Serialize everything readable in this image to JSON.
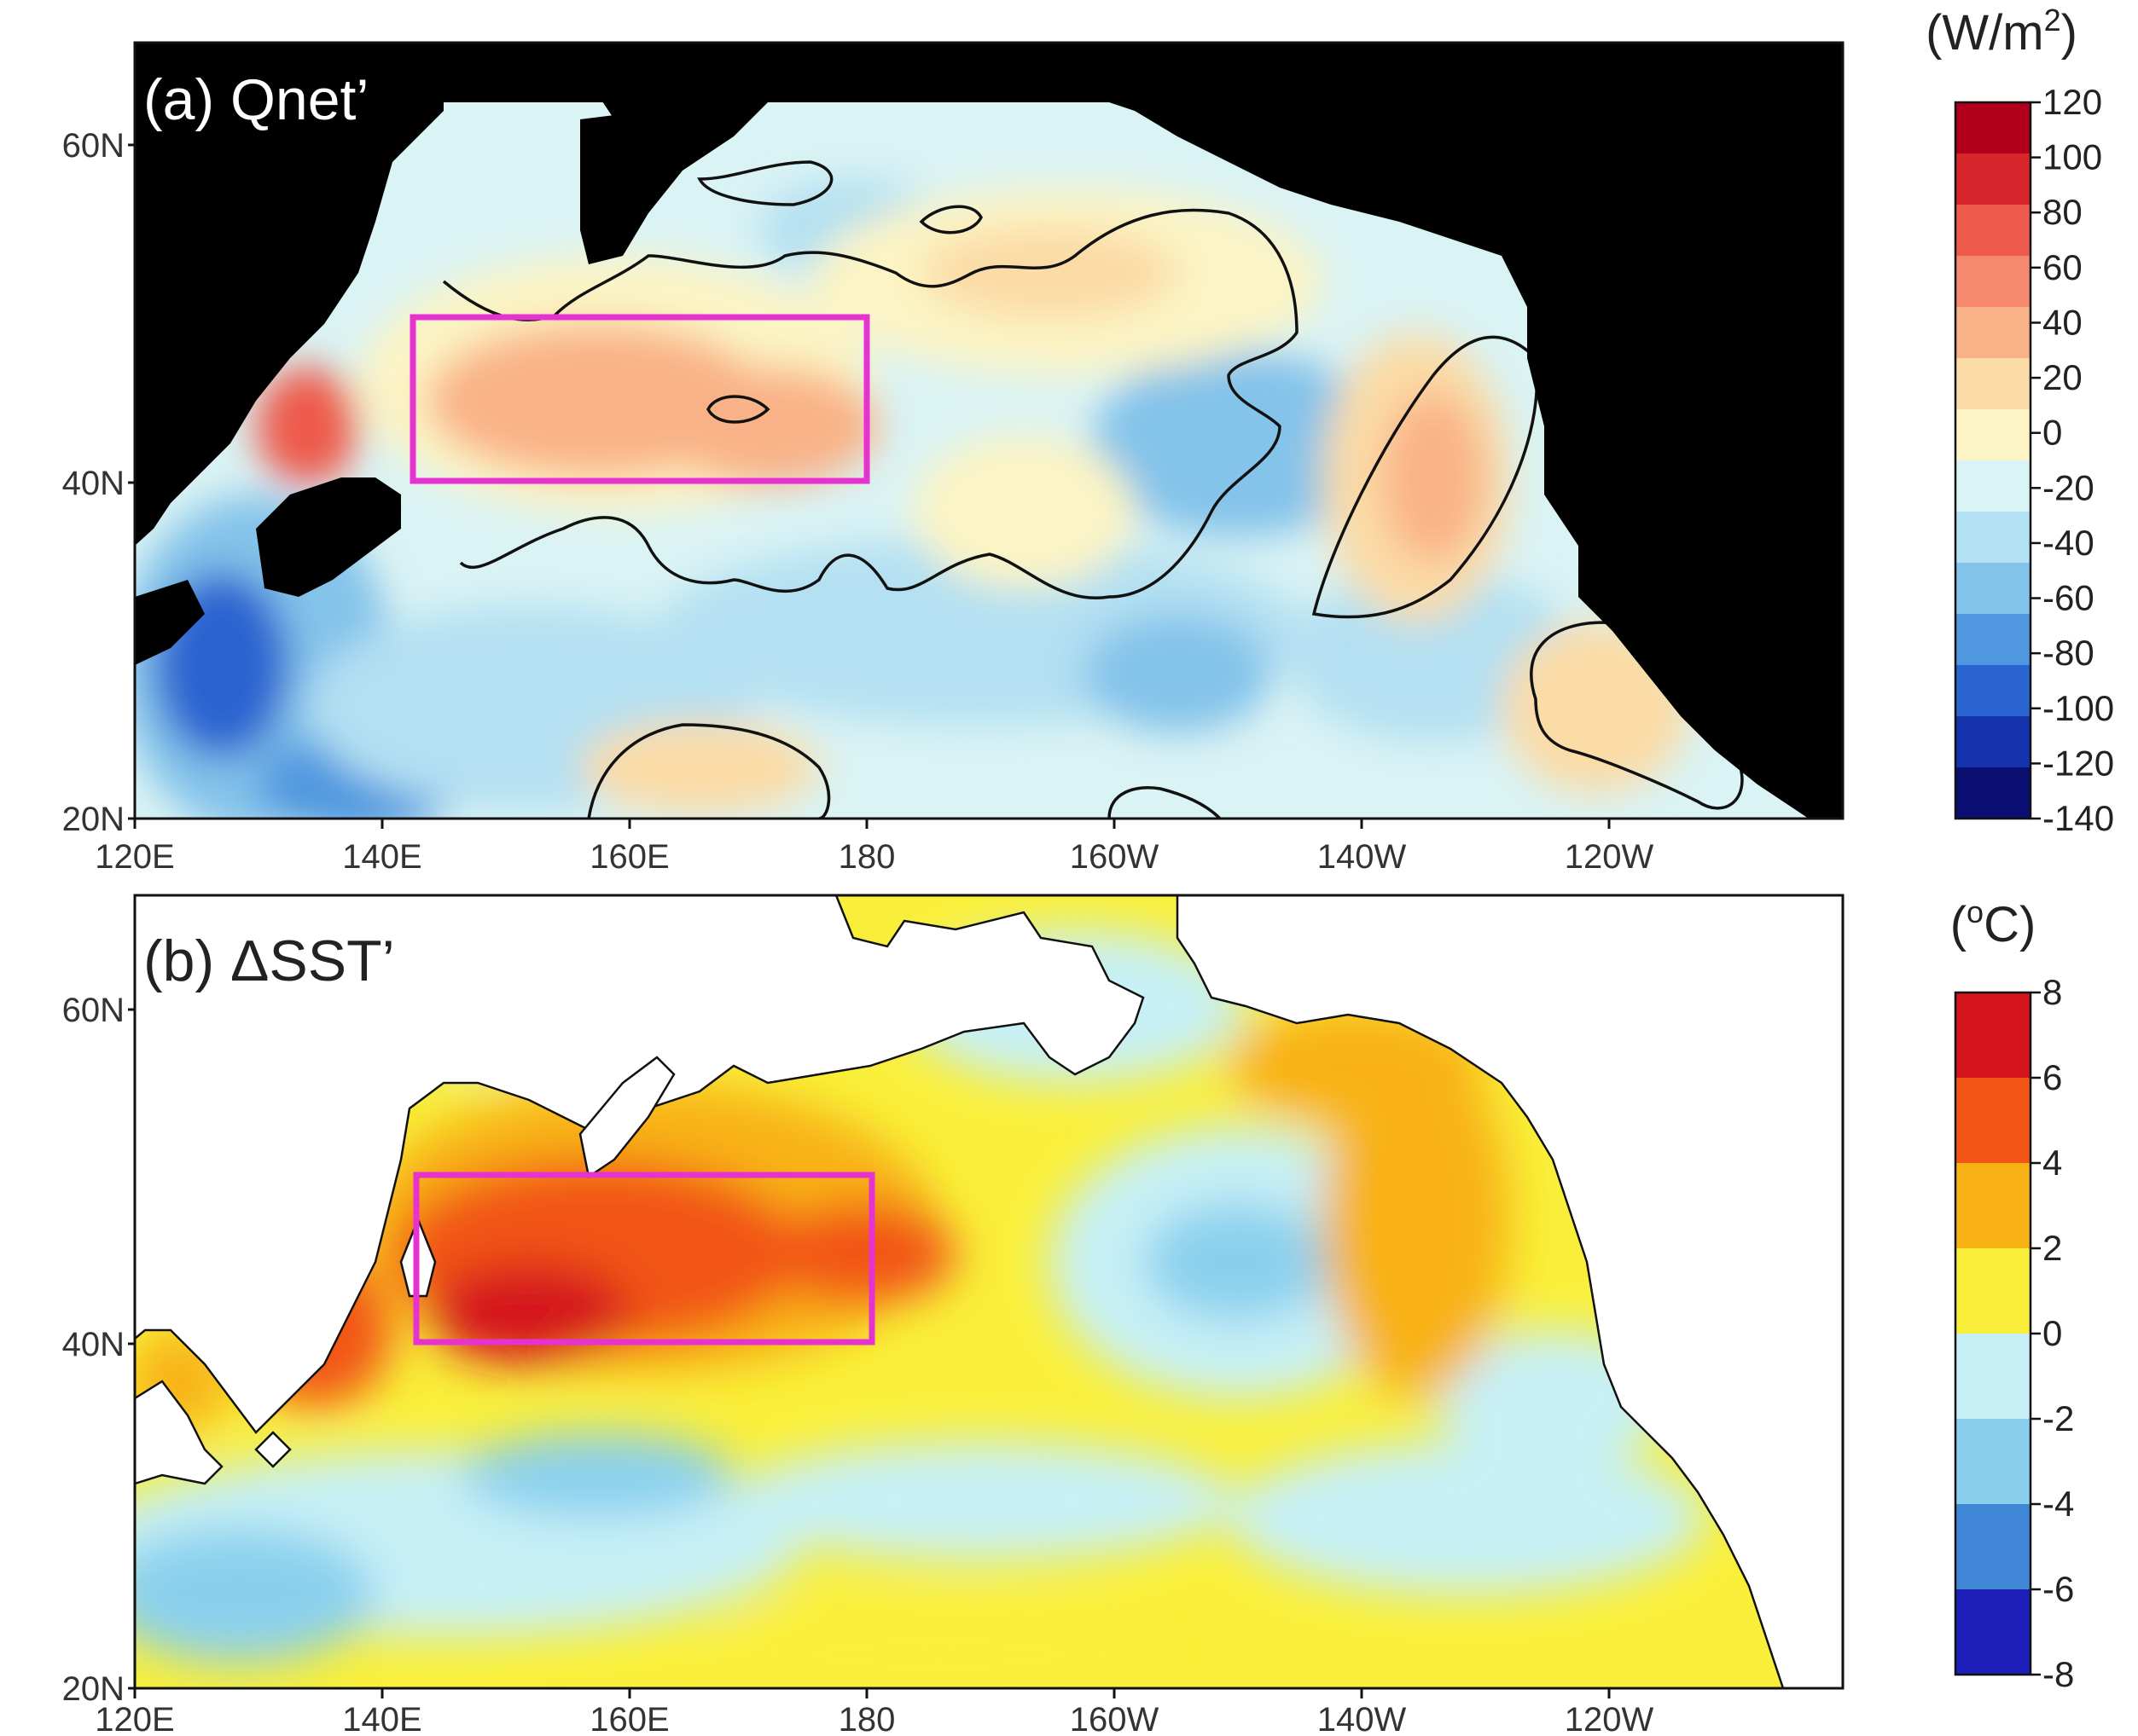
{
  "panels": [
    {
      "id": "a",
      "label": "(a) Qnet’",
      "colorbar_unit_base": "(W/m",
      "colorbar_unit_sup": "2",
      "colorbar_unit_end": ")",
      "colorbar_ticks": [
        "120",
        "100",
        "80",
        "60",
        "40",
        "20",
        "0",
        "-20",
        "-40",
        "-60",
        "-80",
        "-100",
        "-120",
        "-140"
      ],
      "colorbar_colors": [
        "#b2001c",
        "#d7262b",
        "#ee5a4b",
        "#f6896d",
        "#f9b287",
        "#fbdba6",
        "#fcf4c4",
        "#daf3f4",
        "#b3e0f2",
        "#84c3ea",
        "#4f98df",
        "#2a64d0",
        "#1533ad",
        "#0b0f72"
      ],
      "land_color": "#000000",
      "contour_color": "#111111"
    },
    {
      "id": "b",
      "label": "(b) ΔSST’",
      "colorbar_unit_base": "(",
      "colorbar_unit_sup": "o",
      "colorbar_unit_end": "C)",
      "colorbar_ticks": [
        "8",
        "6",
        "4",
        "2",
        "0",
        "-2",
        "-4",
        "-6",
        "-8"
      ],
      "colorbar_colors": [
        "#d5151b",
        "#f25515",
        "#f8b216",
        "#f9ef3a",
        "#c7f0f6",
        "#8ad0ee",
        "#3f86d6",
        "#1e1fb8"
      ],
      "land_color": "#ffffff",
      "contour_color": "#111111"
    }
  ],
  "map_axes": {
    "lon_ticks": [
      "120E",
      "140E",
      "160E",
      "180",
      "160W",
      "140W",
      "120W"
    ],
    "lat_ticks": [
      "60N",
      "40N",
      "20N"
    ]
  },
  "highlight_box": {
    "color": "#e632d0",
    "lon_range": [
      "145E",
      "180"
    ],
    "lat_range": [
      "40N",
      "50N"
    ]
  }
}
